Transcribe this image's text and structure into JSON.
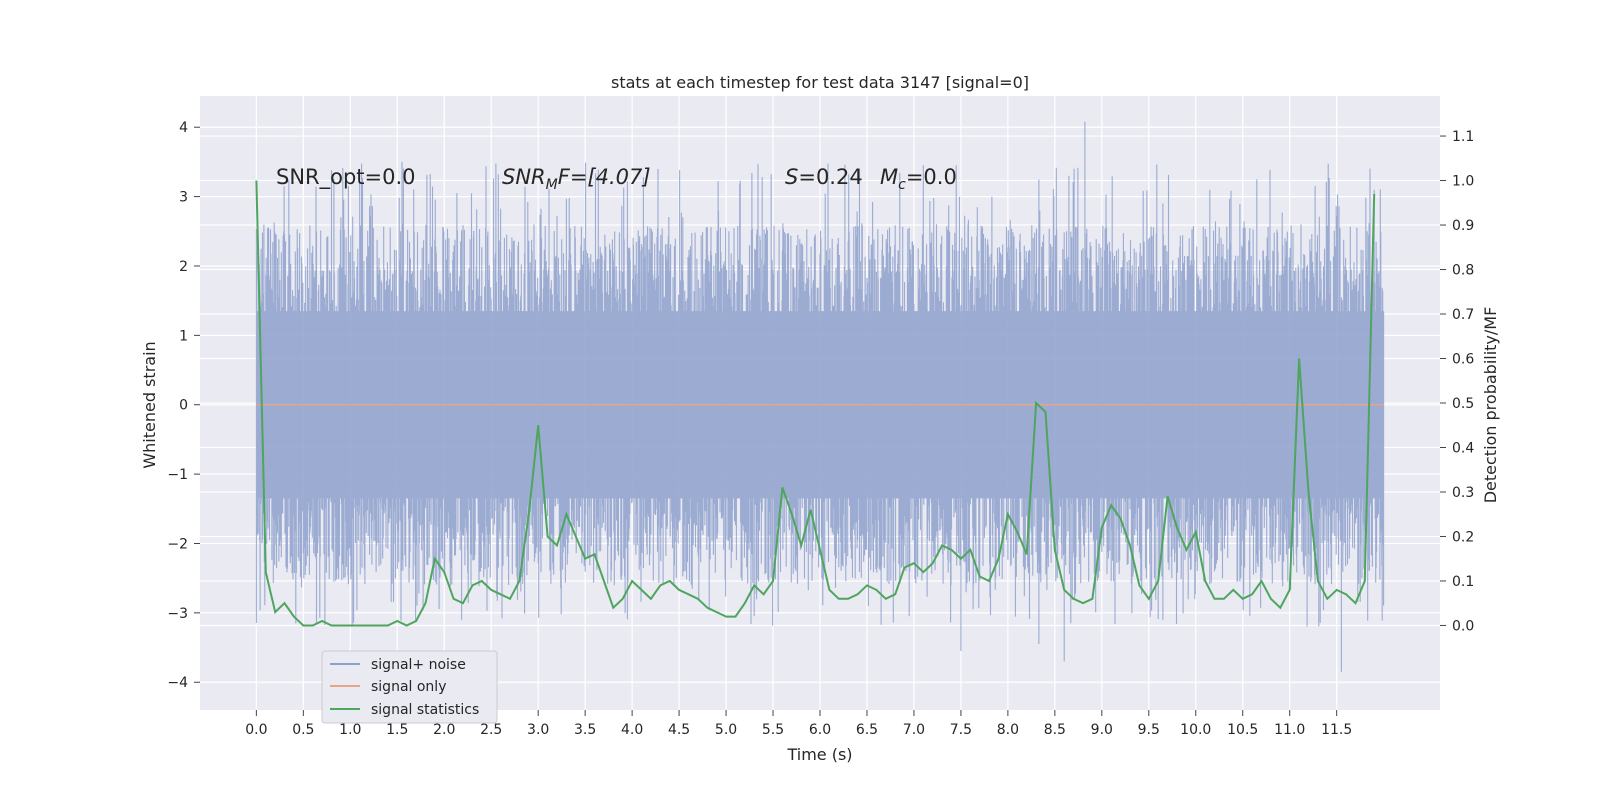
{
  "chart_data": {
    "type": "line",
    "title": "stats at each timestep for test data 3147 [signal=0]",
    "xlabel": "Time (s)",
    "ylabel_left": "Whitened strain",
    "ylabel_right": "Detection probability/MF",
    "xlim": [
      -0.6,
      12.6
    ],
    "ylim_left": [
      -4.4,
      4.45
    ],
    "ylim_right": [
      -0.19,
      1.19
    ],
    "x_ticks": [
      "0.0",
      "0.5",
      "1.0",
      "1.5",
      "2.0",
      "2.5",
      "3.0",
      "3.5",
      "4.0",
      "4.5",
      "5.0",
      "5.5",
      "6.0",
      "6.5",
      "7.0",
      "7.5",
      "8.0",
      "8.5",
      "9.0",
      "9.5",
      "10.0",
      "10.5",
      "11.0",
      "11.5"
    ],
    "y_left_ticks": [
      "4",
      "3",
      "2",
      "1",
      "0",
      "−1",
      "−2",
      "−3",
      "−4"
    ],
    "y_right_ticks": [
      "1.1",
      "1.0",
      "0.9",
      "0.8",
      "0.7",
      "0.6",
      "0.5",
      "0.4",
      "0.3",
      "0.2",
      "0.1",
      "0.0"
    ],
    "grid": true,
    "legend_placement": "lower-left",
    "annotations": {
      "snr_opt": "SNR_opt=0.0",
      "snr_mf_sym": "SNR",
      "snr_mf_sub": "M",
      "snr_mf_rest": "F=[4.07]",
      "s_sym": "S",
      "s_val": "=0.24",
      "mc_sym": "M",
      "mc_sub": "c",
      "mc_val": "=0.0"
    },
    "colors": {
      "noise": "#8da0cb",
      "signal_only": "#e8a489",
      "statistics": "#4ea55e",
      "background": "#eaeaf2",
      "grid": "#ffffff"
    },
    "series": [
      {
        "name": "signal+ noise",
        "axis": "left",
        "t_range": [
          0.0,
          12.0
        ],
        "envelope": "dense noise, roughly ±1.4 with spikes up to ~4.1 and down to ~−3.9"
      },
      {
        "name": "signal only",
        "axis": "left",
        "x": [
          0.0,
          12.0
        ],
        "y": [
          0.0,
          0.0
        ]
      },
      {
        "name": "signal statistics",
        "axis": "right",
        "x": [
          0.0,
          0.1,
          0.2,
          0.3,
          0.4,
          0.5,
          0.6,
          0.7,
          0.8,
          0.9,
          1.0,
          1.1,
          1.2,
          1.3,
          1.4,
          1.5,
          1.6,
          1.7,
          1.8,
          1.9,
          2.0,
          2.1,
          2.2,
          2.3,
          2.4,
          2.5,
          2.6,
          2.7,
          2.8,
          2.9,
          3.0,
          3.1,
          3.2,
          3.3,
          3.4,
          3.5,
          3.6,
          3.7,
          3.8,
          3.9,
          4.0,
          4.1,
          4.2,
          4.3,
          4.4,
          4.5,
          4.6,
          4.7,
          4.8,
          4.9,
          5.0,
          5.1,
          5.2,
          5.3,
          5.4,
          5.5,
          5.6,
          5.7,
          5.8,
          5.9,
          6.0,
          6.1,
          6.2,
          6.3,
          6.4,
          6.5,
          6.6,
          6.7,
          6.8,
          6.9,
          7.0,
          7.1,
          7.2,
          7.3,
          7.4,
          7.5,
          7.6,
          7.7,
          7.8,
          7.9,
          8.0,
          8.1,
          8.2,
          8.3,
          8.4,
          8.5,
          8.6,
          8.7,
          8.8,
          8.9,
          9.0,
          9.1,
          9.2,
          9.3,
          9.4,
          9.5,
          9.6,
          9.7,
          9.8,
          9.9,
          10.0,
          10.1,
          10.2,
          10.3,
          10.4,
          10.5,
          10.6,
          10.7,
          10.8,
          10.9,
          11.0,
          11.1,
          11.2,
          11.3,
          11.4,
          11.5,
          11.6,
          11.7,
          11.8,
          11.9
        ],
        "y": [
          1.0,
          0.12,
          0.03,
          0.05,
          0.02,
          0.0,
          0.0,
          0.01,
          0.0,
          0.0,
          0.0,
          0.0,
          0.0,
          0.0,
          0.0,
          0.01,
          0.0,
          0.01,
          0.05,
          0.15,
          0.12,
          0.06,
          0.05,
          0.09,
          0.1,
          0.08,
          0.07,
          0.06,
          0.1,
          0.25,
          0.45,
          0.2,
          0.18,
          0.25,
          0.2,
          0.15,
          0.16,
          0.1,
          0.04,
          0.06,
          0.1,
          0.08,
          0.06,
          0.09,
          0.1,
          0.08,
          0.07,
          0.06,
          0.04,
          0.03,
          0.02,
          0.02,
          0.05,
          0.09,
          0.07,
          0.1,
          0.31,
          0.25,
          0.18,
          0.26,
          0.17,
          0.08,
          0.06,
          0.06,
          0.07,
          0.09,
          0.08,
          0.06,
          0.07,
          0.13,
          0.14,
          0.12,
          0.14,
          0.18,
          0.17,
          0.15,
          0.17,
          0.11,
          0.1,
          0.15,
          0.25,
          0.21,
          0.16,
          0.5,
          0.48,
          0.17,
          0.08,
          0.06,
          0.05,
          0.06,
          0.22,
          0.27,
          0.24,
          0.18,
          0.09,
          0.06,
          0.1,
          0.29,
          0.22,
          0.17,
          0.21,
          0.1,
          0.06,
          0.06,
          0.08,
          0.06,
          0.07,
          0.1,
          0.06,
          0.04,
          0.08,
          0.6,
          0.3,
          0.1,
          0.06,
          0.08,
          0.07,
          0.05,
          0.1,
          0.97
        ]
      }
    ]
  }
}
